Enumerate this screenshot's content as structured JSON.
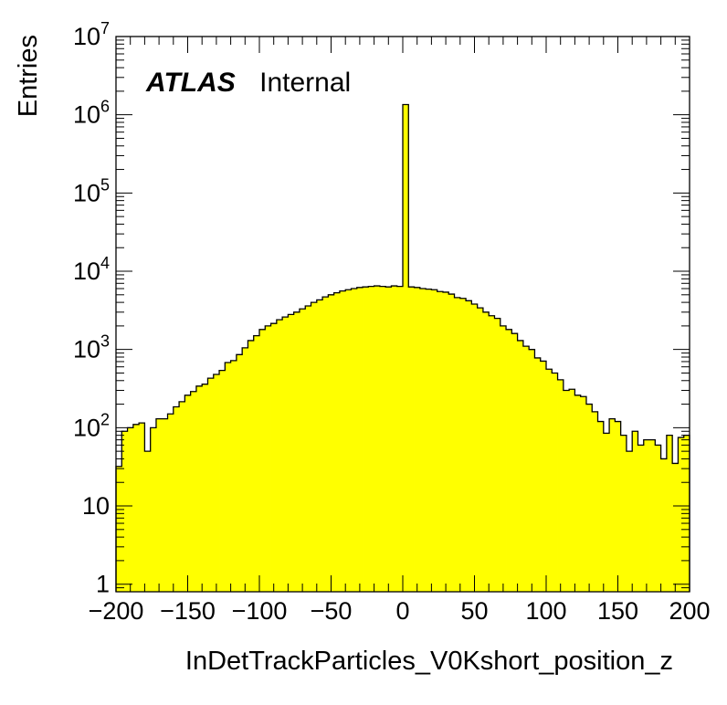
{
  "chart_data": {
    "type": "bar",
    "xlabel": "InDetTrackParticles_V0Kshort_position_z",
    "ylabel": "Entries",
    "xlim": [
      -200,
      200
    ],
    "ylim": [
      0.8,
      10000000
    ],
    "ylog": true,
    "bin_width": 4,
    "x_ticks": [
      -200,
      -150,
      -100,
      -50,
      0,
      50,
      100,
      150,
      200
    ],
    "x_tick_labels": [
      "−200",
      "−150",
      "−100",
      "−50",
      "0",
      "50",
      "100",
      "150",
      "200"
    ],
    "y_ticks": [
      {
        "value": 1,
        "base": "1",
        "exp": ""
      },
      {
        "value": 10,
        "base": "10",
        "exp": ""
      },
      {
        "value": 100,
        "base": "10",
        "exp": "2"
      },
      {
        "value": 1000,
        "base": "10",
        "exp": "3"
      },
      {
        "value": 10000,
        "base": "10",
        "exp": "4"
      },
      {
        "value": 100000,
        "base": "10",
        "exp": "5"
      },
      {
        "value": 1000000,
        "base": "10",
        "exp": "6"
      },
      {
        "value": 10000000,
        "base": "10",
        "exp": "7"
      }
    ],
    "fill_color": "#ffff00",
    "line_color": "#000000",
    "values": [
      32,
      90,
      100,
      110,
      115,
      50,
      100,
      130,
      130,
      150,
      185,
      215,
      260,
      290,
      340,
      360,
      430,
      480,
      540,
      680,
      720,
      860,
      1050,
      1300,
      1500,
      1800,
      2000,
      2150,
      2400,
      2600,
      2800,
      3000,
      3300,
      3600,
      4000,
      4300,
      4700,
      5000,
      5300,
      5600,
      5800,
      6000,
      6200,
      6300,
      6400,
      6500,
      6400,
      6300,
      6500,
      6400,
      1350000,
      6300,
      6200,
      6000,
      5900,
      5800,
      5500,
      5400,
      5100,
      4600,
      4500,
      4200,
      3800,
      3400,
      3000,
      2700,
      2500,
      2000,
      1800,
      1600,
      1300,
      1100,
      1000,
      780,
      710,
      560,
      500,
      410,
      300,
      310,
      260,
      250,
      200,
      160,
      120,
      85,
      130,
      120,
      80,
      50,
      90,
      60,
      70,
      70,
      60,
      40,
      80,
      35,
      75,
      80
    ]
  },
  "atlas": {
    "bold": "ATLAS",
    "normal": "Internal"
  }
}
